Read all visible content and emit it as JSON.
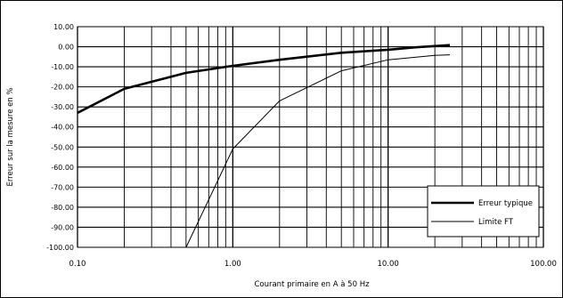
{
  "chart_data": {
    "type": "line",
    "xlabel": "Courant primaire en A à 50 Hz",
    "ylabel": "Erreur sur la mesure en %",
    "xscale": "log",
    "xlim": [
      0.1,
      100
    ],
    "ylim": [
      -100,
      10
    ],
    "x_ticks": [
      0.1,
      1,
      10,
      100
    ],
    "x_tick_labels": [
      "0.10",
      "1.00",
      "10.00",
      "100.00"
    ],
    "y_ticks": [
      10,
      0,
      -10,
      -20,
      -30,
      -40,
      -50,
      -60,
      -70,
      -80,
      -90,
      -100
    ],
    "y_tick_labels": [
      "10.00",
      "0.00",
      "-10.00",
      "-20.00",
      "-30.00",
      "-40.00",
      "-50.00",
      "-60.00",
      "-70.00",
      "-80.00",
      "-90.00",
      "-100.00"
    ],
    "grid": true,
    "legend_position": "bottom-right",
    "series": [
      {
        "name": "Erreur typique",
        "style": "thick",
        "x": [
          0.1,
          0.2,
          0.5,
          1,
          2,
          5,
          10,
          15,
          25
        ],
        "y": [
          -33,
          -21,
          -13,
          -9.5,
          -6.5,
          -3,
          -1.5,
          -0.3,
          0.8
        ]
      },
      {
        "name": "Limite FT",
        "style": "thin",
        "x": [
          0.5,
          1,
          2,
          5,
          10,
          20,
          25
        ],
        "y": [
          -100,
          -51,
          -27,
          -12,
          -6.5,
          -4.3,
          -4
        ]
      }
    ]
  }
}
